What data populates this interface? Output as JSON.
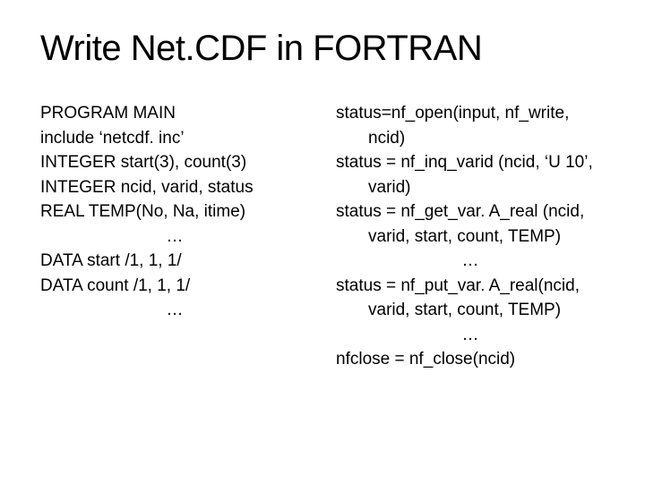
{
  "title": "Write Net.CDF in FORTRAN",
  "left": {
    "l1": "PROGRAM MAIN",
    "l2": "include ‘netcdf. inc’",
    "l3": "INTEGER start(3), count(3)",
    "l4": "INTEGER ncid, varid, status",
    "l5": "REAL TEMP(No, Na, itime)",
    "l6": "…",
    "l7": "DATA start /1, 1, 1/",
    "l8": "DATA count /1, 1, 1/",
    "l9": "…"
  },
  "right": {
    "r1a": "status=nf_open(input, nf_write,",
    "r1b": "ncid)",
    "r2a": "status = nf_inq_varid (ncid, ‘U 10’,",
    "r2b": "varid)",
    "r3a": "status = nf_get_var. A_real (ncid,",
    "r3b": "varid, start, count, TEMP)",
    "r4": "…",
    "r5a": "status = nf_put_var. A_real(ncid,",
    "r5b": "varid, start, count, TEMP)",
    "r6": "…",
    "r7": "nfclose = nf_close(ncid)"
  },
  "style": {
    "title_fontsize": 40,
    "body_fontsize": 19,
    "text_color": "#000000",
    "background_color": "#ffffff"
  }
}
